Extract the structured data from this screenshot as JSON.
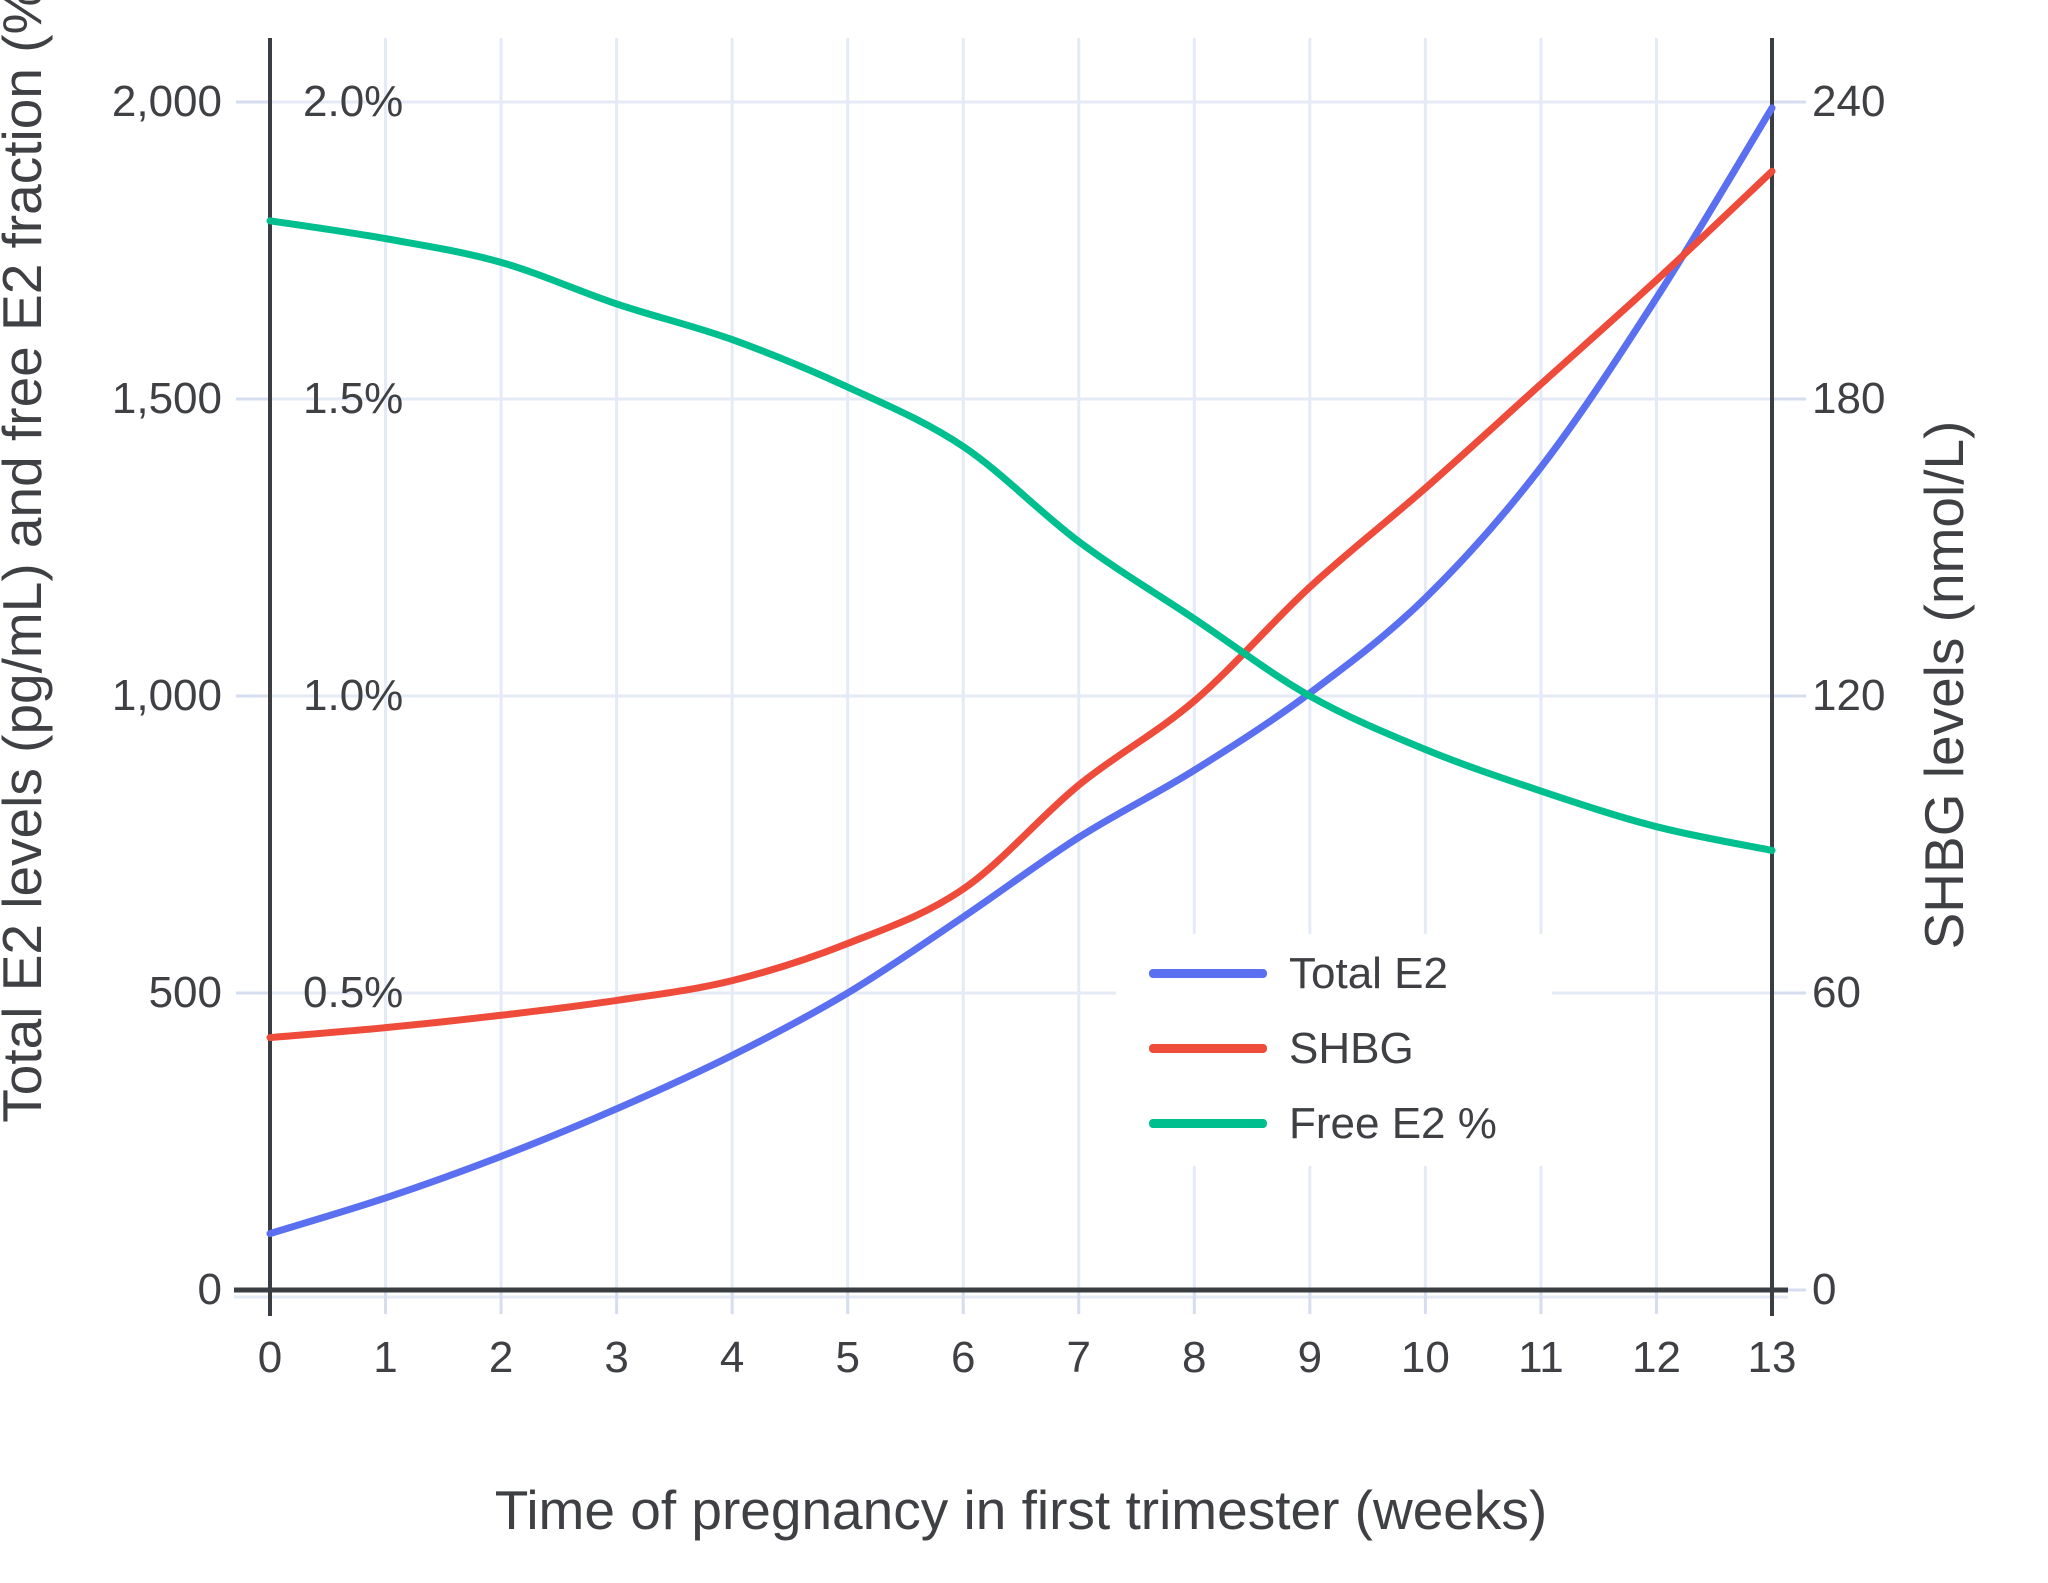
{
  "chart_data": {
    "type": "line",
    "title": "",
    "xlabel": "Time of pregnancy in first trimester (weeks)",
    "ylabel_left": "Total E2 levels (pg/mL) and free E2 fraction (%)",
    "ylabel_right": "SHBG levels (nmol/L)",
    "x": [
      0,
      1,
      2,
      3,
      4,
      5,
      6,
      7,
      8,
      9,
      10,
      11,
      12,
      13
    ],
    "x_tick_labels": [
      "0",
      "1",
      "2",
      "3",
      "4",
      "5",
      "6",
      "7",
      "8",
      "9",
      "10",
      "11",
      "12",
      "13"
    ],
    "left_axis": {
      "range": [
        0,
        2000
      ],
      "tick_values": [
        0,
        500,
        1000,
        1500,
        2000
      ],
      "tick_labels": [
        "0",
        "500",
        "1,000",
        "1,500",
        "2,000"
      ]
    },
    "left_percent_labels": {
      "tick_values": [
        500,
        1000,
        1500,
        2000
      ],
      "tick_labels": [
        "0.5%",
        "1.0%",
        "1.5%",
        "2.0%"
      ]
    },
    "right_axis": {
      "range": [
        0,
        240
      ],
      "tick_values": [
        0,
        60,
        120,
        180,
        240
      ],
      "tick_labels": [
        "0",
        "60",
        "120",
        "180",
        "240"
      ]
    },
    "series": [
      {
        "name": "Total E2",
        "axis": "left",
        "unit": "pg/mL",
        "color": "#5b70f0",
        "values": [
          95,
          155,
          225,
          305,
          395,
          500,
          628,
          762,
          875,
          1005,
          1165,
          1385,
          1670,
          1990
        ]
      },
      {
        "name": "SHBG",
        "axis": "right",
        "unit": "nmol/L",
        "color": "#ee4b3b",
        "values": [
          51,
          53,
          55.5,
          58.5,
          62.5,
          70,
          81,
          102,
          119,
          142,
          162,
          183,
          204,
          226
        ]
      },
      {
        "name": "Free E2 %",
        "axis": "left_percent",
        "unit": "%",
        "color": "#00bf8f",
        "values": [
          1.8,
          1.77,
          1.73,
          1.66,
          1.6,
          1.52,
          1.42,
          1.26,
          1.13,
          1.0,
          0.91,
          0.84,
          0.78,
          0.74
        ]
      }
    ],
    "legend": {
      "position": "inside-right",
      "entries": [
        "Total E2",
        "SHBG",
        "Free E2 %"
      ]
    },
    "grid": true
  },
  "colors": {
    "grid": "#e4eaf6",
    "tick": "#d5ddee",
    "axis": "#3a3d42",
    "text": "#3e4044",
    "background": "#ffffff"
  }
}
